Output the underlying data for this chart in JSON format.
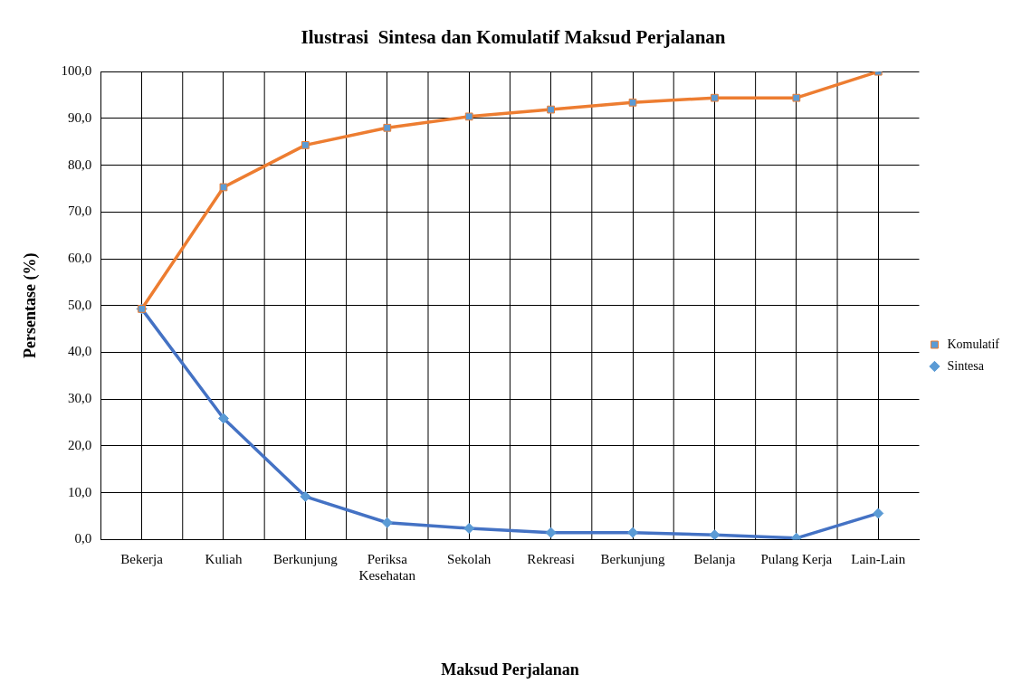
{
  "chart_data": {
    "type": "line",
    "title": "Ilustrasi  Sintesa dan Komulatif Maksud Perjalanan",
    "xlabel": "Maksud Perjalanan",
    "ylabel": "Persentase (%)",
    "categories": [
      "Bekerja",
      "Kuliah",
      "Berkunjung",
      "Periksa Kesehatan",
      "Sekolah",
      "Rekreasi",
      "Berkunjung",
      "Belanja",
      "Pulang Kerja",
      "Lain-Lain"
    ],
    "series": [
      {
        "name": "Sintesa",
        "color": "#4472c4",
        "marker": "diamond",
        "values": [
          49.3,
          25.9,
          9.2,
          3.6,
          2.4,
          1.5,
          1.5,
          1.0,
          0.3,
          5.6
        ]
      },
      {
        "name": "Komulatif",
        "color": "#ed7d31",
        "marker": "square",
        "values": [
          49.3,
          75.3,
          84.3,
          88.0,
          90.4,
          91.9,
          93.4,
          94.4,
          94.4,
          100.0
        ]
      }
    ],
    "ylim": [
      0,
      100
    ],
    "yticks": [
      {
        "value": 0,
        "label": "0,0"
      },
      {
        "value": 10,
        "label": "10,0"
      },
      {
        "value": 20,
        "label": "20,0"
      },
      {
        "value": 30,
        "label": "30,0"
      },
      {
        "value": 40,
        "label": "40,0"
      },
      {
        "value": 50,
        "label": "50,0"
      },
      {
        "value": 60,
        "label": "60,0"
      },
      {
        "value": 70,
        "label": "70,0"
      },
      {
        "value": 80,
        "label": "80,0"
      },
      {
        "value": 90,
        "label": "90,0"
      },
      {
        "value": 100,
        "label": "100,0"
      }
    ],
    "grid": true,
    "legend": "right",
    "line_style": "solid"
  }
}
